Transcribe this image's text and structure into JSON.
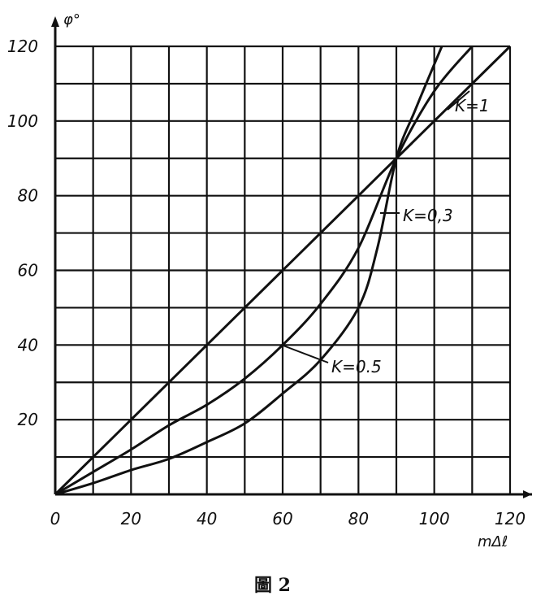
{
  "chart_data": {
    "type": "line",
    "xlabel": "mΔℓ",
    "ylabel": "φ°",
    "xlim": [
      0,
      120
    ],
    "ylim": [
      0,
      120
    ],
    "x_ticks": [
      "0",
      "20",
      "40",
      "60",
      "80",
      "100",
      "120"
    ],
    "y_ticks": [
      "20",
      "40",
      "60",
      "80",
      "100",
      "120"
    ],
    "grid": true,
    "series": [
      {
        "name": "K=1",
        "x": [
          0,
          20,
          40,
          60,
          80,
          90,
          100,
          120
        ],
        "y": [
          0,
          20,
          40,
          60,
          80,
          90,
          100,
          120
        ]
      },
      {
        "name": "K=0.3",
        "x": [
          0,
          10,
          20,
          30,
          40,
          50,
          60,
          70,
          80,
          90,
          100,
          110
        ],
        "y": [
          0,
          6,
          12,
          18.5,
          24,
          31,
          40,
          51,
          66,
          90,
          108,
          120
        ]
      },
      {
        "name": "K=0.5",
        "x": [
          0,
          10,
          20,
          30,
          40,
          50,
          60,
          70,
          80,
          85,
          90,
          95,
          102
        ],
        "y": [
          0,
          3,
          6.5,
          9.5,
          14,
          19,
          27,
          36,
          50,
          66,
          90,
          103,
          120
        ]
      }
    ],
    "annotations": [
      {
        "series": "K=1",
        "text": "K=1"
      },
      {
        "series": "K=0.3",
        "text": "K=0,3"
      },
      {
        "series": "K=0.5",
        "text": "K=0.5"
      }
    ]
  },
  "caption": "圖 2"
}
